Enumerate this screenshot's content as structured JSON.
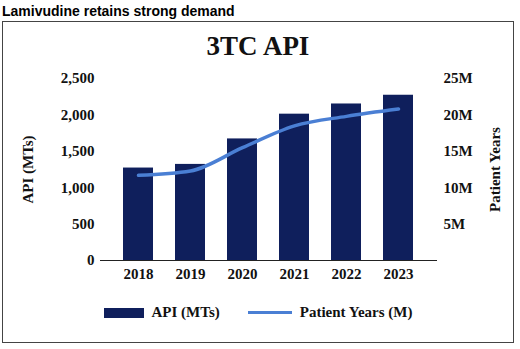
{
  "chart_data": {
    "type": "bar",
    "heading": "Lamivudine retains strong demand",
    "title": "3TC API",
    "y_label": "API (MTs)",
    "y2_label": "Patient Years",
    "categories": [
      "2018",
      "2019",
      "2020",
      "2021",
      "2022",
      "2023"
    ],
    "series": [
      {
        "name": "API (MTs)",
        "type": "bar",
        "color": "#0f1f5c",
        "values": [
          1270,
          1320,
          1670,
          2010,
          2150,
          2270
        ]
      },
      {
        "name": "Patient Years (M)",
        "type": "line",
        "axis": "y2",
        "color": "#4a7fd4",
        "values": [
          11.7,
          12.3,
          15.5,
          18.5,
          19.8,
          20.8
        ]
      }
    ],
    "ylim": [
      0,
      2500
    ],
    "yticks": [
      0,
      500,
      {
        "value": 1000,
        "label": "1,000"
      },
      {
        "value": 1500,
        "label": "1,500"
      },
      {
        "value": 2000,
        "label": "2,000"
      },
      {
        "value": 2500,
        "label": "2,500"
      }
    ],
    "y2lim": [
      0,
      25
    ],
    "y2ticks": [
      {
        "value": 5,
        "label": "5M"
      },
      {
        "value": 10,
        "label": "10M"
      },
      {
        "value": 15,
        "label": "15M"
      },
      {
        "value": 20,
        "label": "20M"
      },
      {
        "value": 25,
        "label": "25M"
      }
    ],
    "grid": false,
    "legend": "bottom"
  }
}
